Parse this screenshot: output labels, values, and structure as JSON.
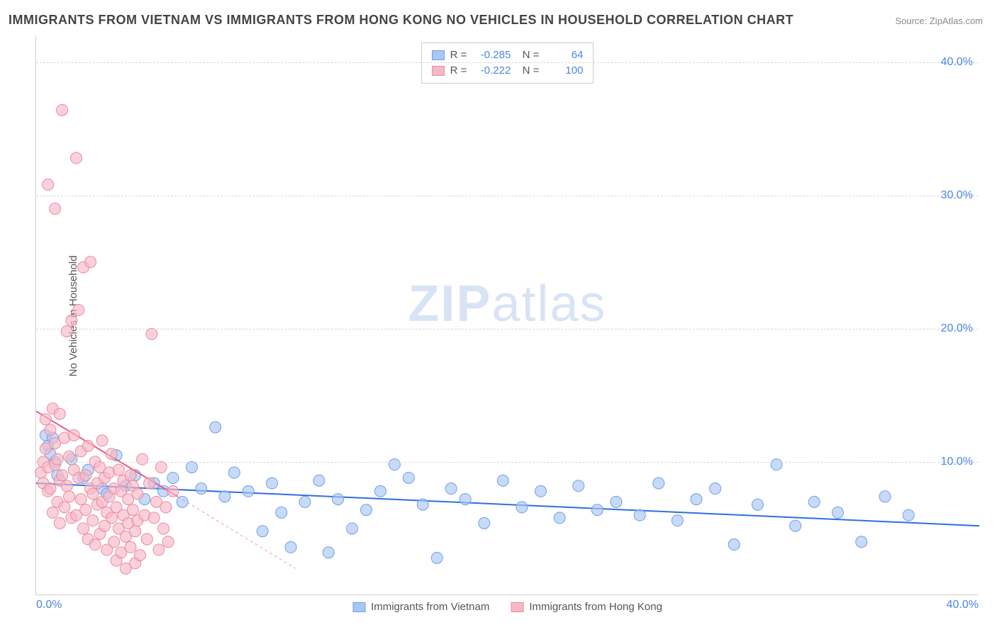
{
  "title": "IMMIGRANTS FROM VIETNAM VS IMMIGRANTS FROM HONG KONG NO VEHICLES IN HOUSEHOLD CORRELATION CHART",
  "source": "Source: ZipAtlas.com",
  "y_axis_label": "No Vehicles in Household",
  "watermark": {
    "bold": "ZIP",
    "rest": "atlas"
  },
  "chart": {
    "type": "scatter",
    "background_color": "#ffffff",
    "grid_color": "#d8d8d8",
    "axis_color": "#d0d0d0",
    "tick_color": "#4a86e8",
    "tick_fontsize": 16,
    "label_fontsize": 15,
    "title_fontsize": 18,
    "xlim": [
      0,
      40
    ],
    "ylim": [
      0,
      42
    ],
    "y_ticks": [
      {
        "value": 10,
        "label": "10.0%"
      },
      {
        "value": 20,
        "label": "20.0%"
      },
      {
        "value": 30,
        "label": "30.0%"
      },
      {
        "value": 40,
        "label": "40.0%"
      }
    ],
    "x_ticks": [
      {
        "value": 0,
        "label": "0.0%",
        "pos": "left"
      },
      {
        "value": 40,
        "label": "40.0%",
        "pos": "right"
      }
    ],
    "series": [
      {
        "id": "vietnam",
        "label": "Immigrants from Vietnam",
        "color_fill": "#a9c6f5",
        "color_stroke": "#6fa0e8",
        "marker_radius": 8,
        "marker_opacity": 0.65,
        "R": "-0.285",
        "N": "64",
        "trend": {
          "x1": 0,
          "y1": 8.4,
          "x2": 40,
          "y2": 5.2,
          "color": "#2f6fe0",
          "width": 2,
          "dash": "none",
          "ext_x2": 40,
          "ext_dash": "4,4"
        },
        "points": [
          [
            0.4,
            12.0
          ],
          [
            0.5,
            11.2
          ],
          [
            0.6,
            10.6
          ],
          [
            0.7,
            11.8
          ],
          [
            0.8,
            10.0
          ],
          [
            0.9,
            9.0
          ],
          [
            1.5,
            10.2
          ],
          [
            2.0,
            8.8
          ],
          [
            2.2,
            9.4
          ],
          [
            2.8,
            8.0
          ],
          [
            3.0,
            7.6
          ],
          [
            3.4,
            10.5
          ],
          [
            3.8,
            8.2
          ],
          [
            4.2,
            9.0
          ],
          [
            4.6,
            7.2
          ],
          [
            5.0,
            8.4
          ],
          [
            5.4,
            7.8
          ],
          [
            5.8,
            8.8
          ],
          [
            6.2,
            7.0
          ],
          [
            6.6,
            9.6
          ],
          [
            7.0,
            8.0
          ],
          [
            7.6,
            12.6
          ],
          [
            8.0,
            7.4
          ],
          [
            8.4,
            9.2
          ],
          [
            9.0,
            7.8
          ],
          [
            9.6,
            4.8
          ],
          [
            10.0,
            8.4
          ],
          [
            10.4,
            6.2
          ],
          [
            10.8,
            3.6
          ],
          [
            11.4,
            7.0
          ],
          [
            12.0,
            8.6
          ],
          [
            12.4,
            3.2
          ],
          [
            12.8,
            7.2
          ],
          [
            13.4,
            5.0
          ],
          [
            14.0,
            6.4
          ],
          [
            14.6,
            7.8
          ],
          [
            15.2,
            9.8
          ],
          [
            15.8,
            8.8
          ],
          [
            16.4,
            6.8
          ],
          [
            17.0,
            2.8
          ],
          [
            17.6,
            8.0
          ],
          [
            18.2,
            7.2
          ],
          [
            19.0,
            5.4
          ],
          [
            19.8,
            8.6
          ],
          [
            20.6,
            6.6
          ],
          [
            21.4,
            7.8
          ],
          [
            22.2,
            5.8
          ],
          [
            23.0,
            8.2
          ],
          [
            23.8,
            6.4
          ],
          [
            24.6,
            7.0
          ],
          [
            25.6,
            6.0
          ],
          [
            26.4,
            8.4
          ],
          [
            27.2,
            5.6
          ],
          [
            28.0,
            7.2
          ],
          [
            28.8,
            8.0
          ],
          [
            29.6,
            3.8
          ],
          [
            30.6,
            6.8
          ],
          [
            31.4,
            9.8
          ],
          [
            32.2,
            5.2
          ],
          [
            33.0,
            7.0
          ],
          [
            34.0,
            6.2
          ],
          [
            35.0,
            4.0
          ],
          [
            36.0,
            7.4
          ],
          [
            37.0,
            6.0
          ]
        ]
      },
      {
        "id": "hongkong",
        "label": "Immigrants from Hong Kong",
        "color_fill": "#f7b8c6",
        "color_stroke": "#ec8aa0",
        "marker_radius": 8,
        "marker_opacity": 0.65,
        "R": "-0.222",
        "N": "100",
        "trend": {
          "x1": 0,
          "y1": 13.8,
          "x2": 6.0,
          "y2": 7.4,
          "color": "#e85a7a",
          "width": 2,
          "dash": "none",
          "ext_x2": 11.0,
          "ext_y2": 2.0,
          "ext_dash": "4,4"
        },
        "points": [
          [
            0.2,
            9.2
          ],
          [
            0.3,
            10.0
          ],
          [
            0.3,
            8.4
          ],
          [
            0.4,
            13.2
          ],
          [
            0.4,
            11.0
          ],
          [
            0.5,
            9.6
          ],
          [
            0.5,
            7.8
          ],
          [
            0.5,
            30.8
          ],
          [
            0.6,
            12.4
          ],
          [
            0.6,
            8.0
          ],
          [
            0.7,
            14.0
          ],
          [
            0.7,
            6.2
          ],
          [
            0.8,
            9.8
          ],
          [
            0.8,
            11.4
          ],
          [
            0.8,
            29.0
          ],
          [
            0.9,
            7.0
          ],
          [
            0.9,
            10.2
          ],
          [
            1.0,
            8.6
          ],
          [
            1.0,
            13.6
          ],
          [
            1.0,
            5.4
          ],
          [
            1.1,
            36.4
          ],
          [
            1.1,
            9.0
          ],
          [
            1.2,
            11.8
          ],
          [
            1.2,
            6.6
          ],
          [
            1.3,
            8.2
          ],
          [
            1.3,
            19.8
          ],
          [
            1.4,
            10.4
          ],
          [
            1.4,
            7.4
          ],
          [
            1.5,
            20.6
          ],
          [
            1.5,
            5.8
          ],
          [
            1.6,
            9.4
          ],
          [
            1.6,
            12.0
          ],
          [
            1.7,
            6.0
          ],
          [
            1.7,
            32.8
          ],
          [
            1.8,
            8.8
          ],
          [
            1.8,
            21.4
          ],
          [
            1.9,
            7.2
          ],
          [
            1.9,
            10.8
          ],
          [
            2.0,
            5.0
          ],
          [
            2.0,
            24.6
          ],
          [
            2.1,
            9.0
          ],
          [
            2.1,
            6.4
          ],
          [
            2.2,
            11.2
          ],
          [
            2.2,
            4.2
          ],
          [
            2.3,
            8.0
          ],
          [
            2.3,
            25.0
          ],
          [
            2.4,
            7.6
          ],
          [
            2.4,
            5.6
          ],
          [
            2.5,
            10.0
          ],
          [
            2.5,
            3.8
          ],
          [
            2.6,
            8.4
          ],
          [
            2.6,
            6.8
          ],
          [
            2.7,
            9.6
          ],
          [
            2.7,
            4.6
          ],
          [
            2.8,
            7.0
          ],
          [
            2.8,
            11.6
          ],
          [
            2.9,
            5.2
          ],
          [
            2.9,
            8.8
          ],
          [
            3.0,
            6.2
          ],
          [
            3.0,
            3.4
          ],
          [
            3.1,
            9.2
          ],
          [
            3.1,
            7.4
          ],
          [
            3.2,
            5.8
          ],
          [
            3.2,
            10.6
          ],
          [
            3.3,
            4.0
          ],
          [
            3.3,
            8.0
          ],
          [
            3.4,
            6.6
          ],
          [
            3.4,
            2.6
          ],
          [
            3.5,
            9.4
          ],
          [
            3.5,
            5.0
          ],
          [
            3.6,
            7.8
          ],
          [
            3.6,
            3.2
          ],
          [
            3.7,
            6.0
          ],
          [
            3.7,
            8.6
          ],
          [
            3.8,
            4.4
          ],
          [
            3.8,
            2.0
          ],
          [
            3.9,
            7.2
          ],
          [
            3.9,
            5.4
          ],
          [
            4.0,
            9.0
          ],
          [
            4.0,
            3.6
          ],
          [
            4.1,
            6.4
          ],
          [
            4.1,
            8.2
          ],
          [
            4.2,
            4.8
          ],
          [
            4.2,
            2.4
          ],
          [
            4.3,
            7.6
          ],
          [
            4.3,
            5.6
          ],
          [
            4.4,
            3.0
          ],
          [
            4.5,
            10.2
          ],
          [
            4.6,
            6.0
          ],
          [
            4.7,
            4.2
          ],
          [
            4.8,
            8.4
          ],
          [
            4.9,
            19.6
          ],
          [
            5.0,
            5.8
          ],
          [
            5.1,
            7.0
          ],
          [
            5.2,
            3.4
          ],
          [
            5.3,
            9.6
          ],
          [
            5.4,
            5.0
          ],
          [
            5.5,
            6.6
          ],
          [
            5.6,
            4.0
          ],
          [
            5.8,
            7.8
          ]
        ]
      }
    ],
    "bottom_legend": [
      {
        "series": "vietnam"
      },
      {
        "series": "hongkong"
      }
    ]
  }
}
